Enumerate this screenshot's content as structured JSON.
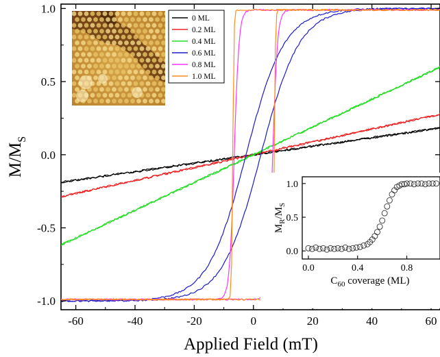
{
  "chart_data": [
    {
      "type": "line",
      "xlabel": "Applied Field (mT)",
      "ylabel": "M/M",
      "ylabel_sub": "S",
      "xlim": [
        -65,
        63
      ],
      "ylim": [
        -1.06,
        1.03
      ],
      "xticks": [
        -60,
        -40,
        -20,
        0,
        20,
        40,
        60
      ],
      "xtick_labels": [
        "-60",
        "-40",
        "-20",
        "0",
        "20",
        "40",
        "60"
      ],
      "yticks": [
        -1.0,
        -0.5,
        0.0,
        0.5,
        1.0
      ],
      "ytick_labels": [
        "-1.0",
        "-0.5",
        "0.0",
        "0.5",
        "1.0"
      ],
      "legend_position": "top-center",
      "series": [
        {
          "name": "0 ML",
          "color": "#000000",
          "slope": 0.0029,
          "saturation": 1.0,
          "coercivity": 0.0
        },
        {
          "name": "0.2 ML",
          "color": "#ee2222",
          "slope": 0.0044,
          "saturation": 1.0,
          "coercivity": 0.0
        },
        {
          "name": "0.4 ML",
          "color": "#22dd22",
          "slope": 0.0095,
          "saturation": 1.0,
          "coercivity": 0.0
        },
        {
          "name": "0.6 ML",
          "color": "#1a1acc",
          "saturation": 1.0,
          "coercivity": 2.5,
          "width": 13.0
        },
        {
          "name": "0.8 ML",
          "color": "#ff33ff",
          "saturation": 0.99,
          "coercivity": 6.5,
          "width": 1.6
        },
        {
          "name": "1.0 ML",
          "color": "#ff8c1a",
          "saturation": 0.99,
          "coercivity": 7.0,
          "width": 0.4
        }
      ]
    },
    {
      "type": "scatter",
      "inset": true,
      "xlabel": "C",
      "xlabel_sub": "60",
      "xlabel_suffix": " coverage (ML)",
      "ylabel": "M",
      "ylabel_sub1": "R",
      "ylabel_mid": "/M",
      "ylabel_sub2": "S",
      "xlim": [
        -0.05,
        1.07
      ],
      "ylim": [
        -0.12,
        1.1
      ],
      "xticks": [
        0.0,
        0.4,
        0.8
      ],
      "xtick_labels": [
        "0.0",
        "0.4",
        "0.8"
      ],
      "yticks": [
        0.0,
        0.5,
        1.0
      ],
      "ytick_labels": [
        "0.0",
        "0.5",
        "1.0"
      ],
      "x": [
        0.0,
        0.03,
        0.06,
        0.09,
        0.12,
        0.15,
        0.18,
        0.21,
        0.24,
        0.27,
        0.3,
        0.33,
        0.36,
        0.39,
        0.42,
        0.45,
        0.48,
        0.5,
        0.52,
        0.54,
        0.56,
        0.58,
        0.6,
        0.62,
        0.64,
        0.66,
        0.68,
        0.7,
        0.72,
        0.74,
        0.76,
        0.78,
        0.8,
        0.83,
        0.86,
        0.89,
        0.92,
        0.95,
        0.98,
        1.01,
        1.04
      ],
      "y": [
        0.04,
        0.03,
        0.05,
        0.03,
        0.04,
        0.02,
        0.04,
        0.03,
        0.04,
        0.03,
        0.05,
        0.03,
        0.04,
        0.05,
        0.06,
        0.08,
        0.1,
        0.13,
        0.17,
        0.22,
        0.28,
        0.36,
        0.45,
        0.56,
        0.66,
        0.75,
        0.84,
        0.9,
        0.95,
        0.97,
        0.99,
        0.99,
        1.0,
        1.0,
        0.99,
        1.0,
        1.0,
        0.99,
        1.0,
        1.0,
        1.0
      ]
    }
  ],
  "legend": {
    "items": [
      {
        "label": "0 ML",
        "color": "#000000"
      },
      {
        "label": "0.2 ML",
        "color": "#ee2222"
      },
      {
        "label": "0.4 ML",
        "color": "#22dd22"
      },
      {
        "label": "0.6 ML",
        "color": "#1a1acc"
      },
      {
        "label": "0.8 ML",
        "color": "#ff33ff"
      },
      {
        "label": "1.0 ML",
        "color": "#ff8c1a"
      }
    ]
  },
  "stm_image": {
    "description_icon": "stm-topography-image"
  }
}
